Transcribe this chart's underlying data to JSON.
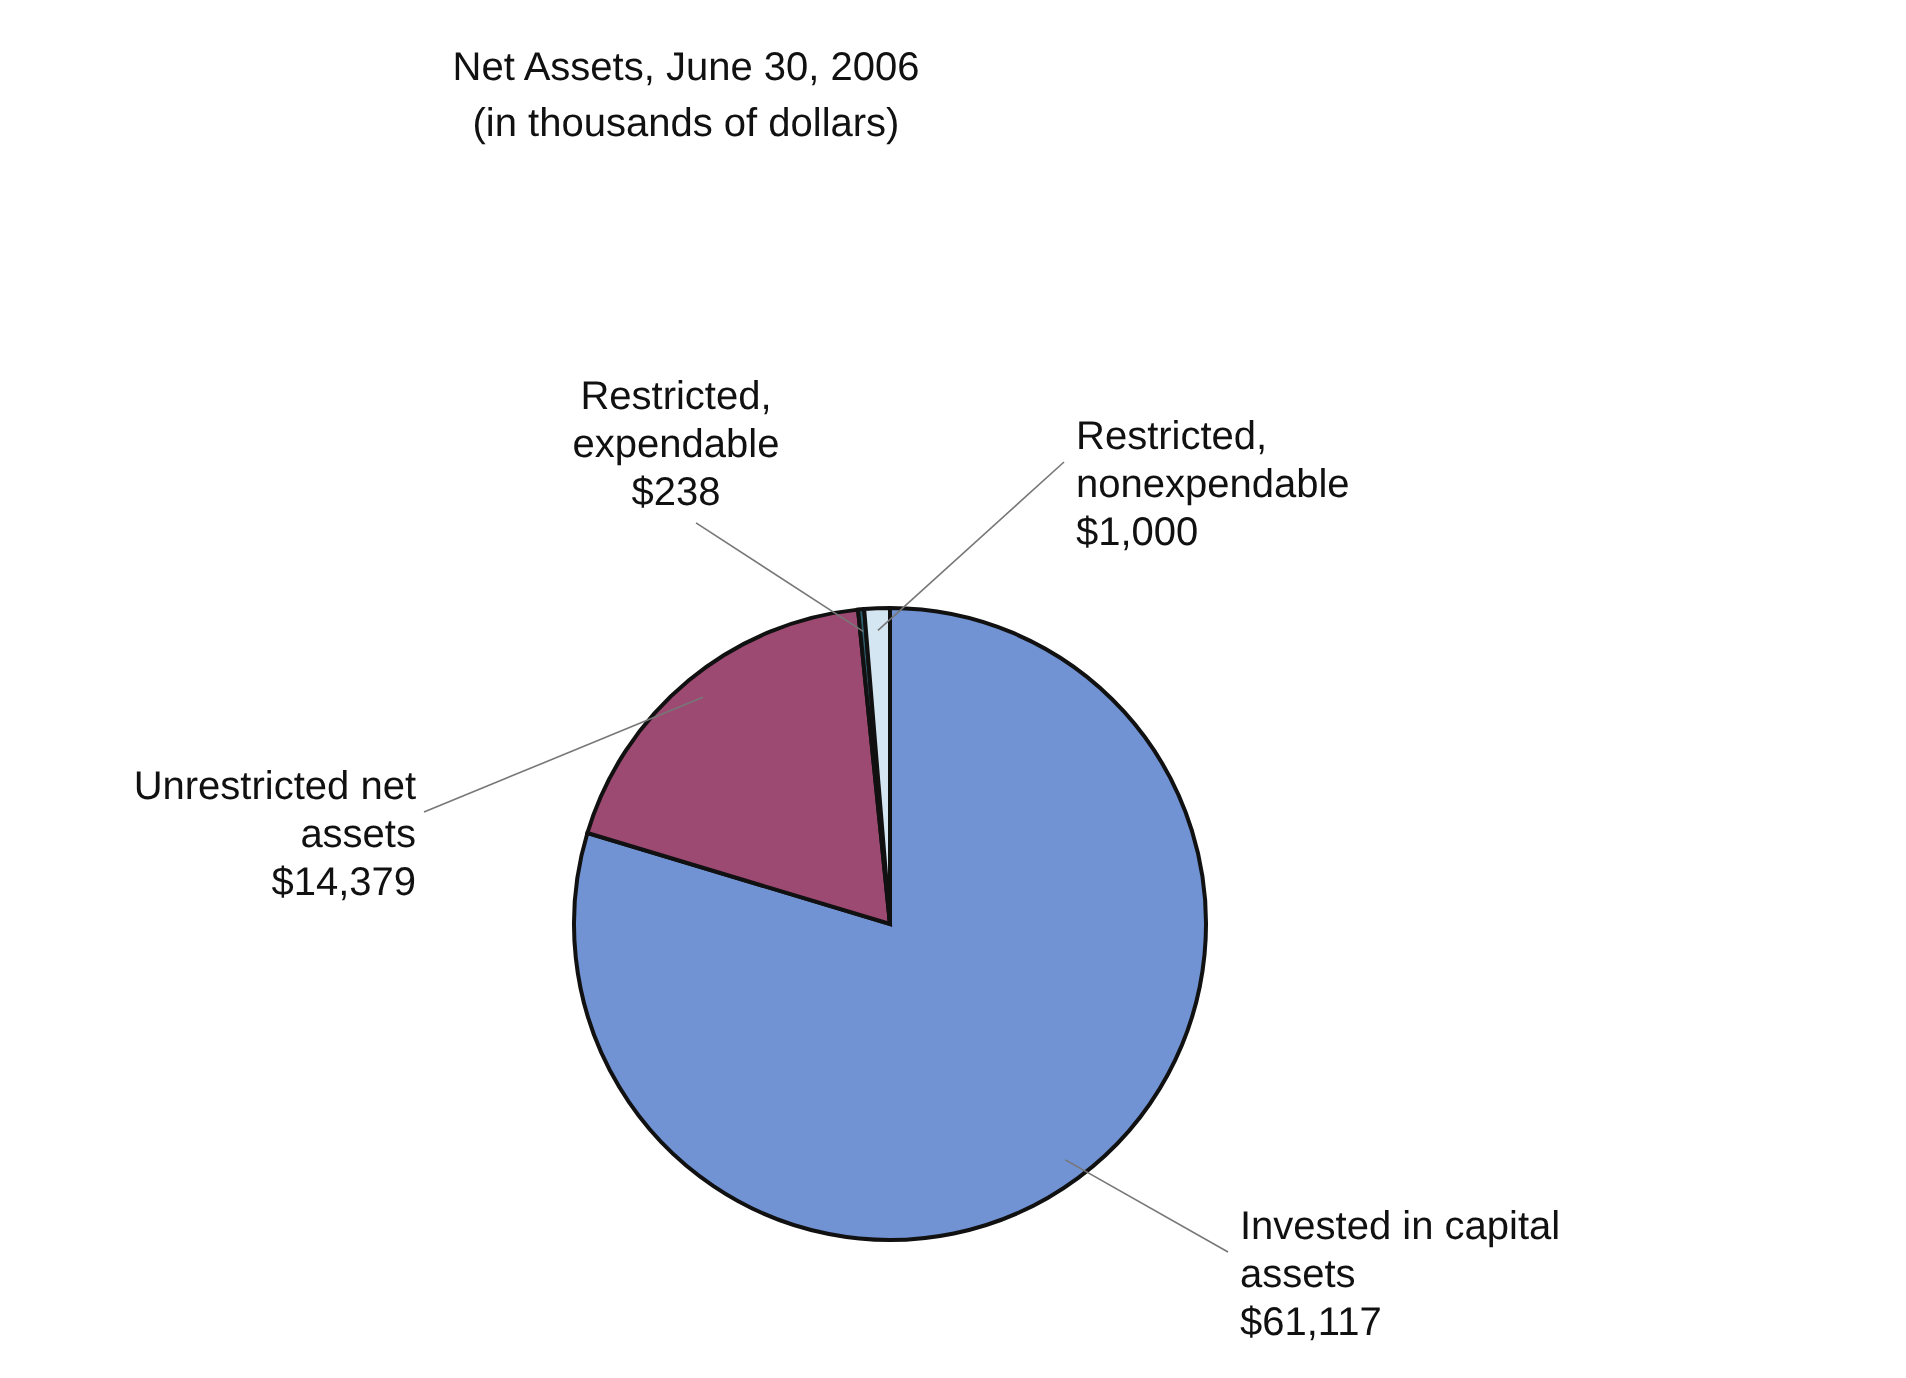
{
  "chart_data": {
    "type": "pie",
    "title": "Net Assets, June 30, 2006",
    "subtitle": "(in thousands of dollars)",
    "categories": [
      "Invested in capital assets",
      "Unrestricted net assets",
      "Restricted, expendable",
      "Restricted, nonexpendable"
    ],
    "values": [
      61117,
      14379,
      238,
      1000
    ],
    "value_labels": [
      "$61,117",
      "$14,379",
      "$238",
      "$1,000"
    ],
    "colors": [
      "#7193d3",
      "#9c4a72",
      "#2f5f6e",
      "#d3e6f2"
    ]
  }
}
